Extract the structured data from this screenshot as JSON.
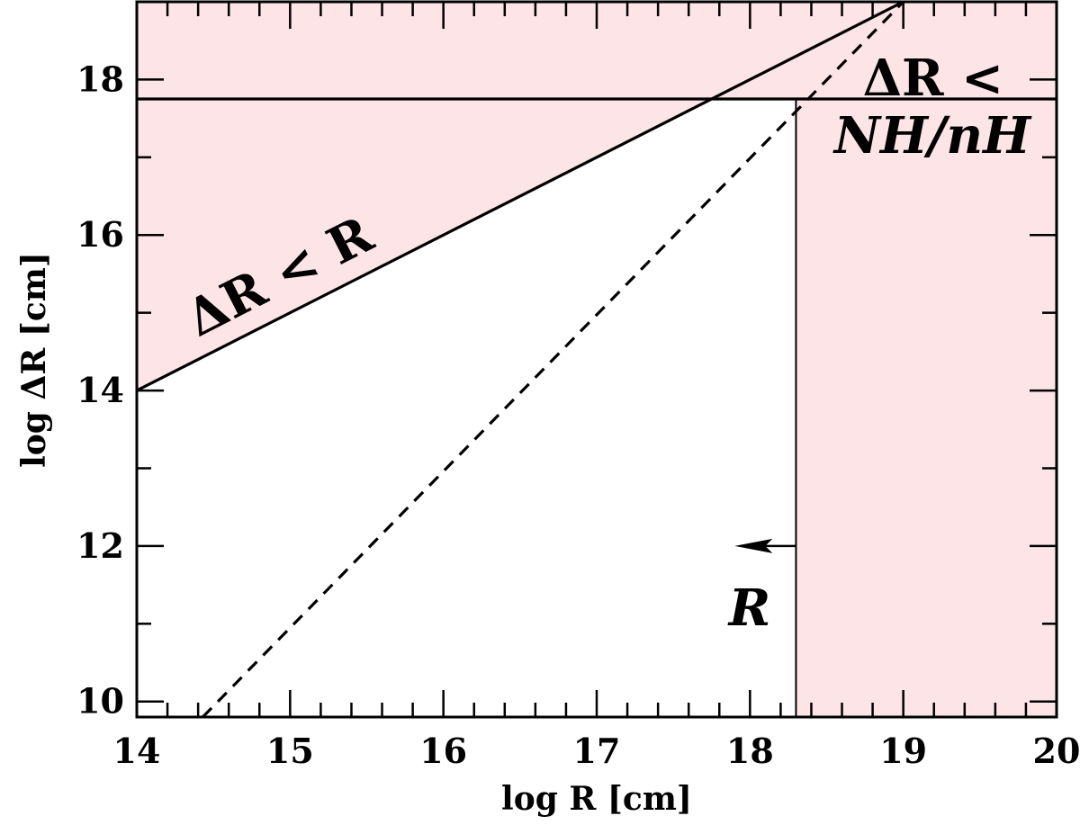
{
  "chart_data": {
    "type": "line",
    "xlabel": "log R [cm]",
    "ylabel": "log ΔR [cm]",
    "xlim": [
      14,
      20
    ],
    "ylim": [
      9.8,
      19
    ],
    "x_ticks": [
      14,
      15,
      16,
      17,
      18,
      19,
      20
    ],
    "y_ticks": [
      10,
      12,
      14,
      16,
      18
    ],
    "x_tick_labels": [
      "14",
      "15",
      "16",
      "17",
      "18",
      "19",
      "20"
    ],
    "y_tick_labels": [
      "10",
      "12",
      "14",
      "16",
      "18"
    ],
    "grid": false,
    "colors": {
      "shade": "#fde4e6",
      "line": "#000000"
    },
    "series": [
      {
        "style": "solid",
        "x": [
          14,
          19
        ],
        "y": [
          14,
          19
        ]
      },
      {
        "style": "dashed",
        "x": [
          14.43,
          19
        ],
        "y": [
          9.8,
          19
        ]
      },
      {
        "style": "solid",
        "x": [
          14,
          20
        ],
        "y": [
          17.75,
          17.75
        ]
      },
      {
        "style": "solid-thin",
        "x": [
          18.3,
          18.3
        ],
        "y": [
          9.8,
          17.75
        ]
      }
    ],
    "shaded_regions": [
      {
        "description_key": "above-diagonal",
        "bounds": "ΔR > R"
      },
      {
        "description_key": "above-horizontal",
        "bounds": "ΔR > NH/nH"
      },
      {
        "description_key": "right-of-vertical",
        "bounds": "R > 18.3"
      }
    ],
    "annotations": {
      "diag_label": "ΔR < R",
      "column_label_line1": "ΔR <",
      "column_label_line2": "NH/nH",
      "arrow_label": "R"
    },
    "arrow": {
      "x_from": 18.3,
      "x_to": 17.9,
      "y": 12
    }
  }
}
